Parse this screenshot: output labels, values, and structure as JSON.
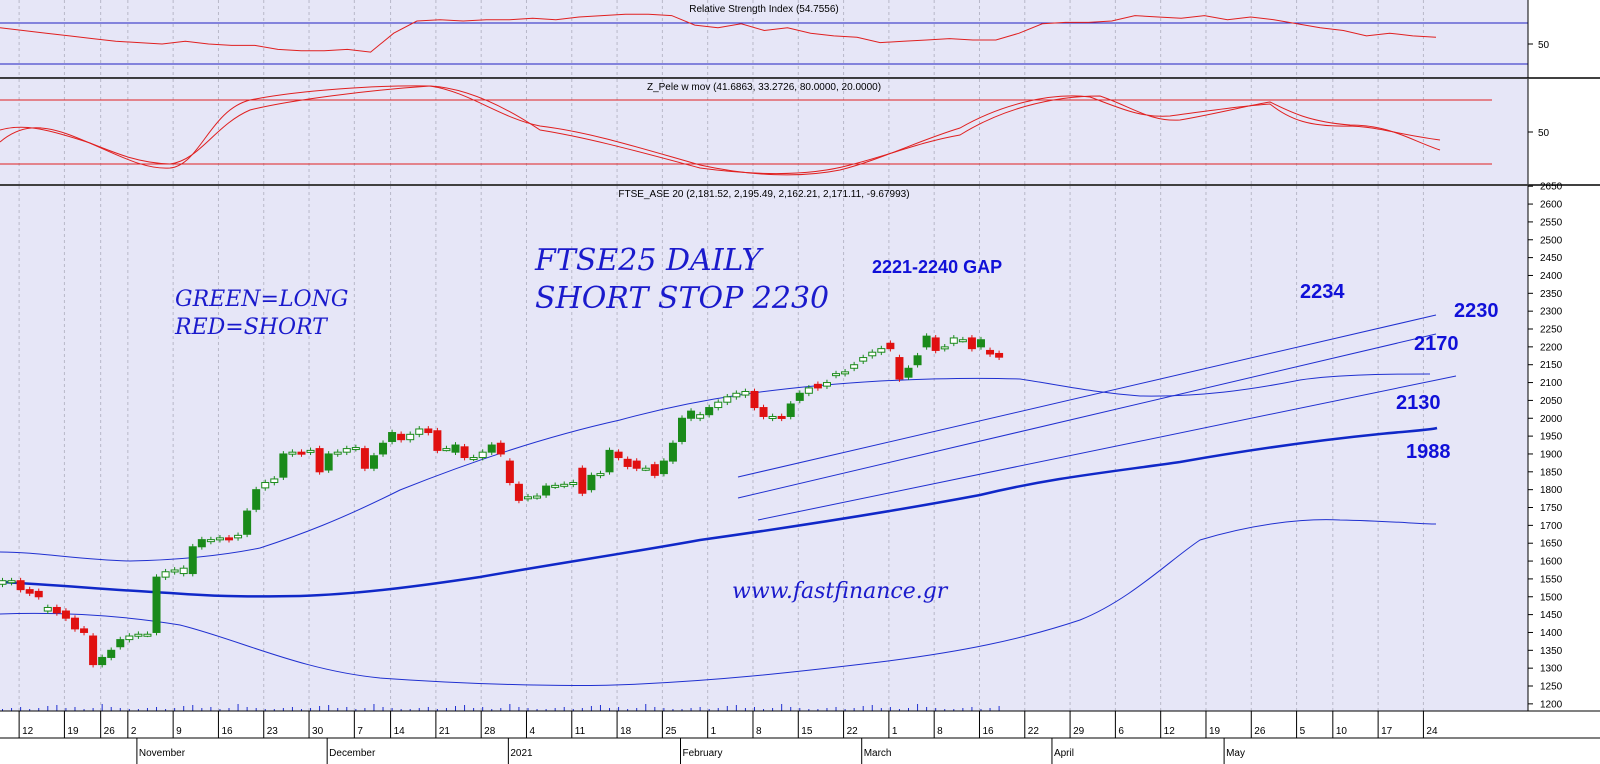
{
  "colors": {
    "panel_bg": "#e6e6f7",
    "rsi_line": "#e02020",
    "rsi_level": "#2020c0",
    "pele_lines": "#e02020",
    "bollinger": "#2030d0",
    "ma_thick": "#1028c8",
    "bull": "#1a8a1a",
    "bear": "#e01010",
    "annotation": "#1a1acc"
  },
  "rsi": {
    "title": "Relative Strength Index (54.7556)",
    "axis_label": "50",
    "values": [
      62,
      60,
      58,
      56,
      54,
      52,
      51,
      50,
      52,
      50,
      49,
      49,
      46,
      45,
      45,
      46,
      44,
      58,
      67,
      68,
      67,
      68,
      68,
      69,
      68,
      70,
      71,
      72,
      72,
      71,
      64,
      62,
      65,
      60,
      62,
      58,
      56,
      55,
      51,
      52,
      53,
      54,
      53,
      53,
      58,
      65,
      66,
      66,
      67,
      71,
      70,
      69,
      71,
      68,
      70,
      68,
      65,
      62,
      60,
      56,
      58,
      56,
      55
    ]
  },
  "pele": {
    "title": "Z_Pele w mov (41.6863, 33.2726, 80.0000, 20.0000)",
    "axis_label": "50",
    "upper": 80,
    "lower": 20
  },
  "price": {
    "title": "FTSE_ASE 20 (2,181.52, 2,195.49, 2,162.21, 2,171.11, -9.67993)",
    "y_ticks": [
      "2650",
      "2600",
      "2550",
      "2500",
      "2450",
      "2400",
      "2350",
      "2300",
      "2250",
      "2200",
      "2150",
      "2100",
      "2050",
      "2000",
      "1950",
      "1900",
      "1850",
      "1800",
      "1750",
      "1700",
      "1650",
      "1600",
      "1550",
      "1500",
      "1450",
      "1400",
      "1350",
      "1300",
      "1250",
      "1200"
    ],
    "candles": [
      {
        "o": 1535,
        "c": 1545
      },
      {
        "o": 1540,
        "c": 1545
      },
      {
        "o": 1545,
        "c": 1520
      },
      {
        "o": 1520,
        "c": 1510
      },
      {
        "o": 1515,
        "c": 1500
      },
      {
        "o": 1460,
        "c": 1470
      },
      {
        "o": 1470,
        "c": 1455
      },
      {
        "o": 1460,
        "c": 1440
      },
      {
        "o": 1440,
        "c": 1410
      },
      {
        "o": 1410,
        "c": 1400
      },
      {
        "o": 1390,
        "c": 1310
      },
      {
        "o": 1310,
        "c": 1330
      },
      {
        "o": 1330,
        "c": 1350
      },
      {
        "o": 1360,
        "c": 1380
      },
      {
        "o": 1380,
        "c": 1390
      },
      {
        "o": 1390,
        "c": 1395
      },
      {
        "o": 1395,
        "c": 1395
      },
      {
        "o": 1400,
        "c": 1555
      },
      {
        "o": 1555,
        "c": 1570
      },
      {
        "o": 1570,
        "c": 1575
      },
      {
        "o": 1565,
        "c": 1580
      },
      {
        "o": 1565,
        "c": 1640
      },
      {
        "o": 1640,
        "c": 1660
      },
      {
        "o": 1655,
        "c": 1660
      },
      {
        "o": 1660,
        "c": 1665
      },
      {
        "o": 1665,
        "c": 1660
      },
      {
        "o": 1665,
        "c": 1672
      },
      {
        "o": 1675,
        "c": 1740
      },
      {
        "o": 1745,
        "c": 1800
      },
      {
        "o": 1805,
        "c": 1820
      },
      {
        "o": 1820,
        "c": 1830
      },
      {
        "o": 1835,
        "c": 1900
      },
      {
        "o": 1900,
        "c": 1905
      },
      {
        "o": 1905,
        "c": 1900
      },
      {
        "o": 1905,
        "c": 1910
      },
      {
        "o": 1915,
        "c": 1850
      },
      {
        "o": 1855,
        "c": 1900
      },
      {
        "o": 1900,
        "c": 1905
      },
      {
        "o": 1905,
        "c": 1915
      },
      {
        "o": 1915,
        "c": 1918
      },
      {
        "o": 1915,
        "c": 1860
      },
      {
        "o": 1860,
        "c": 1895
      },
      {
        "o": 1900,
        "c": 1930
      },
      {
        "o": 1935,
        "c": 1960
      },
      {
        "o": 1955,
        "c": 1940
      },
      {
        "o": 1940,
        "c": 1955
      },
      {
        "o": 1955,
        "c": 1970
      },
      {
        "o": 1970,
        "c": 1960
      },
      {
        "o": 1965,
        "c": 1910
      },
      {
        "o": 1915,
        "c": 1915
      },
      {
        "o": 1905,
        "c": 1925
      },
      {
        "o": 1920,
        "c": 1890
      },
      {
        "o": 1888,
        "c": 1890
      },
      {
        "o": 1890,
        "c": 1905
      },
      {
        "o": 1905,
        "c": 1925
      },
      {
        "o": 1930,
        "c": 1900
      },
      {
        "o": 1880,
        "c": 1820
      },
      {
        "o": 1815,
        "c": 1770
      },
      {
        "o": 1775,
        "c": 1780
      },
      {
        "o": 1780,
        "c": 1782
      },
      {
        "o": 1785,
        "c": 1810
      },
      {
        "o": 1810,
        "c": 1812
      },
      {
        "o": 1812,
        "c": 1815
      },
      {
        "o": 1815,
        "c": 1820
      },
      {
        "o": 1860,
        "c": 1790
      },
      {
        "o": 1800,
        "c": 1840
      },
      {
        "o": 1840,
        "c": 1845
      },
      {
        "o": 1850,
        "c": 1910
      },
      {
        "o": 1905,
        "c": 1890
      },
      {
        "o": 1885,
        "c": 1865
      },
      {
        "o": 1880,
        "c": 1860
      },
      {
        "o": 1860,
        "c": 1860
      },
      {
        "o": 1870,
        "c": 1840
      },
      {
        "o": 1845,
        "c": 1880
      },
      {
        "o": 1880,
        "c": 1930
      },
      {
        "o": 1935,
        "c": 2000
      },
      {
        "o": 2000,
        "c": 2020
      },
      {
        "o": 2000,
        "c": 2010
      },
      {
        "o": 2010,
        "c": 2030
      },
      {
        "o": 2030,
        "c": 2045
      },
      {
        "o": 2045,
        "c": 2060
      },
      {
        "o": 2060,
        "c": 2070
      },
      {
        "o": 2065,
        "c": 2075
      },
      {
        "o": 2075,
        "c": 2030
      },
      {
        "o": 2030,
        "c": 2005
      },
      {
        "o": 2000,
        "c": 2005
      },
      {
        "o": 2005,
        "c": 2000
      },
      {
        "o": 2005,
        "c": 2040
      },
      {
        "o": 2050,
        "c": 2070
      },
      {
        "o": 2070,
        "c": 2085
      },
      {
        "o": 2095,
        "c": 2085
      },
      {
        "o": 2090,
        "c": 2100
      },
      {
        "o": 2120,
        "c": 2125
      },
      {
        "o": 2125,
        "c": 2130
      },
      {
        "o": 2140,
        "c": 2150
      },
      {
        "o": 2160,
        "c": 2170
      },
      {
        "o": 2175,
        "c": 2185
      },
      {
        "o": 2185,
        "c": 2195
      },
      {
        "o": 2210,
        "c": 2195
      },
      {
        "o": 2170,
        "c": 2110
      },
      {
        "o": 2115,
        "c": 2140
      },
      {
        "o": 2150,
        "c": 2175
      },
      {
        "o": 2200,
        "c": 2230
      },
      {
        "o": 2225,
        "c": 2190
      },
      {
        "o": 2195,
        "c": 2200
      },
      {
        "o": 2210,
        "c": 2225
      },
      {
        "o": 2220,
        "c": 2220
      },
      {
        "o": 2225,
        "c": 2195
      },
      {
        "o": 2200,
        "c": 2220
      },
      {
        "o": 2190,
        "c": 2180
      },
      {
        "o": 2181.52,
        "c": 2171.11
      }
    ]
  },
  "x_ticks": [
    {
      "label": "12",
      "i": 2
    },
    {
      "label": "19",
      "i": 7
    },
    {
      "label": "26",
      "i": 11
    },
    {
      "label": "2",
      "i": 14
    },
    {
      "label": "9",
      "i": 19
    },
    {
      "label": "16",
      "i": 24
    },
    {
      "label": "23",
      "i": 29
    },
    {
      "label": "30",
      "i": 34
    },
    {
      "label": "7",
      "i": 39
    },
    {
      "label": "14",
      "i": 43
    },
    {
      "label": "21",
      "i": 48
    },
    {
      "label": "28",
      "i": 53
    },
    {
      "label": "4",
      "i": 58
    },
    {
      "label": "11",
      "i": 63
    },
    {
      "label": "18",
      "i": 68
    },
    {
      "label": "25",
      "i": 73
    },
    {
      "label": "1",
      "i": 78
    },
    {
      "label": "8",
      "i": 83
    },
    {
      "label": "15",
      "i": 88
    },
    {
      "label": "22",
      "i": 93
    },
    {
      "label": "1",
      "i": 98
    },
    {
      "label": "8",
      "i": 103
    },
    {
      "label": "16",
      "i": 108
    },
    {
      "label": "22",
      "i": 113
    },
    {
      "label": "29",
      "i": 118
    },
    {
      "label": "6",
      "i": 123
    },
    {
      "label": "12",
      "i": 128
    },
    {
      "label": "19",
      "i": 133
    },
    {
      "label": "26",
      "i": 138
    },
    {
      "label": "5",
      "i": 143
    },
    {
      "label": "10",
      "i": 147
    },
    {
      "label": "17",
      "i": 152
    },
    {
      "label": "24",
      "i": 157
    }
  ],
  "months": [
    {
      "label": "November",
      "i": 15
    },
    {
      "label": "December",
      "i": 36
    },
    {
      "label": "2021",
      "i": 56
    },
    {
      "label": "February",
      "i": 75
    },
    {
      "label": "March",
      "i": 95
    },
    {
      "label": "April",
      "i": 116
    },
    {
      "label": "May",
      "i": 135
    }
  ],
  "annotations": {
    "title_line1": "FTSE25 DAILY",
    "title_line2": "SHORT STOP 2230",
    "legend_line1": "GREEN=LONG",
    "legend_line2": "RED=SHORT",
    "gap": "2221-2240 GAP",
    "website": "www.fastfinance.gr",
    "lvl_2234": "2234",
    "lvl_2230": "2230",
    "lvl_2170": "2170",
    "lvl_2130": "2130",
    "lvl_1988": "1988"
  }
}
